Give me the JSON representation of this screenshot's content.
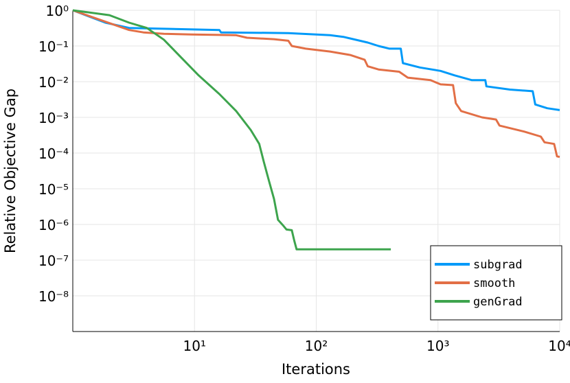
{
  "chart_data": {
    "type": "line",
    "x_label": "Iterations",
    "y_label": "Relative Objective Gap",
    "xscale": "log",
    "yscale": "log",
    "grid": true,
    "legend": "bottom-right",
    "xlim": [
      1,
      10000
    ],
    "ylim": [
      1e-09,
      1
    ],
    "xticks": [
      {
        "value": 10,
        "label": "10¹"
      },
      {
        "value": 100,
        "label": "10²"
      },
      {
        "value": 1000,
        "label": "10³"
      },
      {
        "value": 10000,
        "label": "10⁴"
      }
    ],
    "yticks": [
      {
        "value": 1,
        "label": "10⁰"
      },
      {
        "value": 0.1,
        "label": "10⁻¹"
      },
      {
        "value": 0.01,
        "label": "10⁻²"
      },
      {
        "value": 0.001,
        "label": "10⁻³"
      },
      {
        "value": 0.0001,
        "label": "10⁻⁴"
      },
      {
        "value": 1e-05,
        "label": "10⁻⁵"
      },
      {
        "value": 1e-06,
        "label": "10⁻⁶"
      },
      {
        "value": 1e-07,
        "label": "10⁻⁷"
      },
      {
        "value": 1e-08,
        "label": "10⁻⁸"
      }
    ],
    "series": [
      {
        "name": "subgrad",
        "color": "#009af9",
        "x": [
          1,
          1.85,
          2.9,
          16,
          16.5,
          59,
          130,
          167,
          265,
          325,
          400,
          495,
          515,
          710,
          1050,
          1370,
          1900,
          2450,
          2500,
          3900,
          6000,
          6300,
          7900,
          10000
        ],
        "values": [
          1,
          0.45,
          0.32,
          0.28,
          0.24,
          0.23,
          0.2,
          0.18,
          0.125,
          0.1,
          0.084,
          0.084,
          0.033,
          0.025,
          0.02,
          0.015,
          0.011,
          0.011,
          0.0074,
          0.006,
          0.0054,
          0.0023,
          0.0018,
          0.0016
        ]
      },
      {
        "name": "smooth",
        "color": "#e26f46",
        "x": [
          1,
          2.9,
          3.8,
          5.6,
          9.5,
          22,
          27,
          45,
          59,
          63,
          82,
          130,
          190,
          250,
          265,
          325,
          480,
          565,
          870,
          1050,
          1330,
          1400,
          1550,
          2300,
          3000,
          3200,
          5100,
          7000,
          7500,
          9000,
          9500,
          10000
        ],
        "values": [
          1,
          0.28,
          0.24,
          0.22,
          0.21,
          0.2,
          0.17,
          0.155,
          0.14,
          0.1,
          0.084,
          0.07,
          0.056,
          0.041,
          0.027,
          0.022,
          0.019,
          0.013,
          0.011,
          0.0084,
          0.008,
          0.0025,
          0.0015,
          0.001,
          0.00087,
          0.00059,
          0.0004,
          0.00029,
          0.0002,
          0.00018,
          8.1e-05,
          7.8e-05
        ]
      },
      {
        "name": "genGrad",
        "color": "#3da44d",
        "x": [
          1,
          2,
          2.9,
          4.05,
          5.6,
          7.8,
          10.8,
          16,
          22,
          29,
          34,
          37,
          41,
          45,
          48.5,
          53,
          57,
          63,
          66,
          69,
          410
        ],
        "values": [
          1,
          0.73,
          0.45,
          0.32,
          0.15,
          0.047,
          0.015,
          0.0045,
          0.0015,
          0.00044,
          0.00018,
          5.8e-05,
          1.6e-05,
          5.2e-06,
          1.35e-06,
          9.7e-07,
          7.2e-07,
          6.9e-07,
          3.5e-07,
          2e-07,
          2e-07
        ]
      }
    ]
  }
}
